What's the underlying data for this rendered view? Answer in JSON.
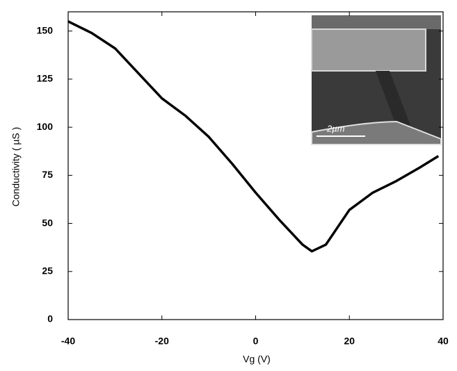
{
  "chart_data": {
    "type": "line",
    "x_label": "Vg (V)",
    "y_label": "Conductivity ( µS )",
    "x": [
      -40,
      -35,
      -30,
      -25,
      -20,
      -15,
      -10,
      -5,
      0,
      5,
      10,
      12,
      15,
      20,
      25,
      30,
      35,
      39
    ],
    "series": [
      {
        "color": "#000000",
        "values": [
          155,
          149,
          141,
          128,
          115,
          106,
          95,
          81,
          66,
          52,
          39,
          35.5,
          39,
          57,
          66,
          72,
          79,
          85
        ]
      }
    ],
    "xlim": [
      -40,
      40
    ],
    "xticks": [
      -40,
      -20,
      0,
      20,
      40
    ],
    "ylim": [
      0,
      160
    ],
    "yticks": [
      0,
      25,
      50,
      75,
      100,
      125,
      150
    ],
    "inset_label": "2µm"
  }
}
